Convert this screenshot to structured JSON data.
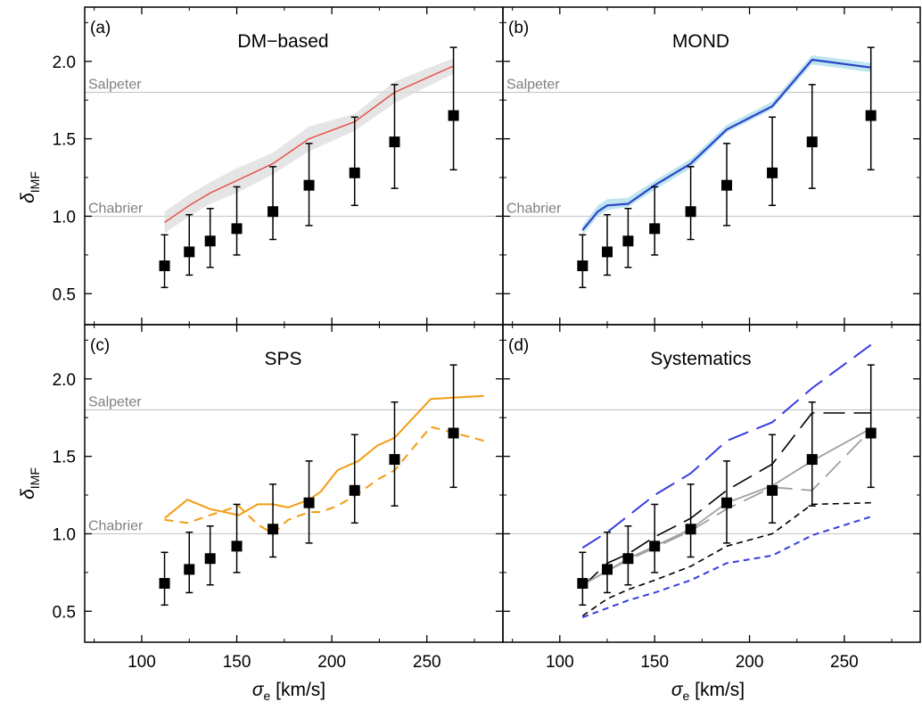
{
  "figure": {
    "xlabel_symbol": "σ",
    "xlabel_sub": "e",
    "xlabel_unit": " [km/s]",
    "ylabel_symbol": "δ",
    "ylabel_sub": "IMF"
  },
  "chart_data": [
    {
      "panel": "a",
      "panel_label": "(a)",
      "title": "DM−based",
      "type": "line",
      "xlim": [
        70,
        290
      ],
      "ylim": [
        0.3,
        2.35
      ],
      "xticks": [
        100,
        150,
        200,
        250
      ],
      "yticks": [
        0.5,
        1.0,
        1.5,
        2.0
      ],
      "reference_lines": [
        {
          "label": "Salpeter",
          "y": 1.8
        },
        {
          "label": "Chabrier",
          "y": 1.0
        }
      ],
      "data_points": {
        "x": [
          112,
          125,
          136,
          150,
          169,
          188,
          212,
          233,
          264
        ],
        "y": [
          0.68,
          0.77,
          0.84,
          0.92,
          1.03,
          1.2,
          1.28,
          1.48,
          1.65
        ],
        "err_low": [
          0.14,
          0.15,
          0.17,
          0.17,
          0.18,
          0.26,
          0.21,
          0.3,
          0.35
        ],
        "err_high": [
          0.2,
          0.24,
          0.21,
          0.27,
          0.29,
          0.27,
          0.36,
          0.37,
          0.44
        ]
      },
      "band": {
        "x": [
          112,
          125,
          136,
          150,
          169,
          188,
          212,
          233,
          264
        ],
        "lower": [
          0.89,
          1.0,
          1.08,
          1.15,
          1.27,
          1.42,
          1.55,
          1.73,
          1.92
        ],
        "upper": [
          1.03,
          1.14,
          1.22,
          1.31,
          1.41,
          1.58,
          1.66,
          1.87,
          2.02
        ],
        "color": "#dcdcdc"
      },
      "series": [
        {
          "x": [
            112,
            125,
            136,
            150,
            169,
            188,
            212,
            233,
            264
          ],
          "y": [
            0.96,
            1.07,
            1.15,
            1.23,
            1.34,
            1.5,
            1.61,
            1.8,
            1.97
          ],
          "color": "#e8483e",
          "style": "solid",
          "width": 1.4
        }
      ]
    },
    {
      "panel": "b",
      "panel_label": "(b)",
      "title": "MOND",
      "type": "line",
      "xlim": [
        70,
        290
      ],
      "ylim": [
        0.3,
        2.35
      ],
      "xticks": [
        100,
        150,
        200,
        250
      ],
      "yticks": [
        0.5,
        1.0,
        1.5,
        2.0
      ],
      "reference_lines": [
        {
          "label": "Salpeter",
          "y": 1.8
        },
        {
          "label": "Chabrier",
          "y": 1.0
        }
      ],
      "data_points": {
        "x": [
          112,
          125,
          136,
          150,
          169,
          188,
          212,
          233,
          264
        ],
        "y": [
          0.68,
          0.77,
          0.84,
          0.92,
          1.03,
          1.2,
          1.28,
          1.48,
          1.65
        ],
        "err_low": [
          0.14,
          0.15,
          0.17,
          0.17,
          0.18,
          0.26,
          0.21,
          0.3,
          0.35
        ],
        "err_high": [
          0.2,
          0.24,
          0.21,
          0.27,
          0.29,
          0.27,
          0.36,
          0.37,
          0.44
        ]
      },
      "band": {
        "x": [
          112,
          120,
          125,
          136,
          150,
          169,
          188,
          212,
          233,
          264
        ],
        "lower": [
          0.88,
          1.0,
          1.04,
          1.06,
          1.17,
          1.31,
          1.54,
          1.69,
          1.98,
          1.93
        ],
        "upper": [
          0.94,
          1.07,
          1.11,
          1.12,
          1.23,
          1.37,
          1.59,
          1.74,
          2.04,
          1.99
        ],
        "color": "#a9dcec"
      },
      "series": [
        {
          "x": [
            112,
            120,
            125,
            136,
            150,
            169,
            188,
            212,
            233,
            264
          ],
          "y": [
            0.91,
            1.03,
            1.07,
            1.08,
            1.2,
            1.34,
            1.56,
            1.71,
            2.01,
            1.96
          ],
          "color": "#2a44c8",
          "style": "solid",
          "width": 2.2
        }
      ]
    },
    {
      "panel": "c",
      "panel_label": "(c)",
      "title": "SPS",
      "type": "line",
      "xlim": [
        70,
        290
      ],
      "ylim": [
        0.3,
        2.35
      ],
      "xticks": [
        100,
        150,
        200,
        250
      ],
      "yticks": [
        0.5,
        1.0,
        1.5,
        2.0
      ],
      "reference_lines": [
        {
          "label": "Salpeter",
          "y": 1.8
        },
        {
          "label": "Chabrier",
          "y": 1.0
        }
      ],
      "data_points": {
        "x": [
          112,
          125,
          136,
          150,
          169,
          188,
          212,
          233,
          264
        ],
        "y": [
          0.68,
          0.77,
          0.84,
          0.92,
          1.03,
          1.2,
          1.28,
          1.48,
          1.65
        ],
        "err_low": [
          0.14,
          0.15,
          0.17,
          0.17,
          0.18,
          0.26,
          0.21,
          0.3,
          0.35
        ],
        "err_high": [
          0.2,
          0.24,
          0.21,
          0.27,
          0.29,
          0.27,
          0.36,
          0.37,
          0.44
        ]
      },
      "band": null,
      "series": [
        {
          "x": [
            112,
            124,
            136,
            151,
            161,
            169,
            177,
            188,
            194,
            203,
            214,
            224,
            233,
            252,
            265,
            280
          ],
          "y": [
            1.1,
            1.22,
            1.16,
            1.12,
            1.19,
            1.19,
            1.17,
            1.22,
            1.27,
            1.41,
            1.47,
            1.57,
            1.62,
            1.87,
            1.88,
            1.89
          ],
          "color": "#f39c12",
          "style": "solid",
          "width": 2.0
        },
        {
          "x": [
            112,
            124,
            136,
            151,
            161,
            169,
            177,
            188,
            194,
            203,
            214,
            224,
            233,
            252,
            265,
            280
          ],
          "y": [
            1.09,
            1.07,
            1.12,
            1.18,
            1.06,
            1.0,
            1.09,
            1.14,
            1.14,
            1.18,
            1.26,
            1.35,
            1.41,
            1.69,
            1.65,
            1.6
          ],
          "color": "#f39c12",
          "style": "dashed",
          "width": 2.0
        }
      ]
    },
    {
      "panel": "d",
      "panel_label": "(d)",
      "title": "Systematics",
      "type": "line",
      "xlim": [
        70,
        290
      ],
      "ylim": [
        0.3,
        2.35
      ],
      "xticks": [
        100,
        150,
        200,
        250
      ],
      "yticks": [
        0.5,
        1.0,
        1.5,
        2.0
      ],
      "reference_lines": [
        {
          "label": "",
          "y": 1.8
        },
        {
          "label": "",
          "y": 1.0
        }
      ],
      "data_points": {
        "x": [
          112,
          125,
          136,
          150,
          169,
          188,
          212,
          233,
          264
        ],
        "y": [
          0.68,
          0.77,
          0.84,
          0.92,
          1.03,
          1.2,
          1.28,
          1.48,
          1.65
        ],
        "err_low": [
          0.14,
          0.15,
          0.17,
          0.17,
          0.18,
          0.26,
          0.21,
          0.3,
          0.35
        ],
        "err_high": [
          0.2,
          0.24,
          0.21,
          0.27,
          0.29,
          0.27,
          0.36,
          0.37,
          0.44
        ]
      },
      "band": null,
      "series": [
        {
          "x": [
            112,
            125,
            150,
            169,
            188,
            212,
            233,
            264
          ],
          "y": [
            0.91,
            1.01,
            1.25,
            1.39,
            1.6,
            1.72,
            1.94,
            2.22
          ],
          "color": "#3a3ee0",
          "style": "longdash",
          "width": 2.0
        },
        {
          "x": [
            112,
            125,
            136,
            150,
            169,
            188,
            212,
            233,
            264
          ],
          "y": [
            0.66,
            0.81,
            0.87,
            0.98,
            1.1,
            1.28,
            1.45,
            1.78,
            1.78
          ],
          "color": "#000000",
          "style": "longdash",
          "width": 1.6
        },
        {
          "x": [
            112,
            125,
            136,
            150,
            169,
            188,
            212,
            233,
            264
          ],
          "y": [
            0.67,
            0.76,
            0.84,
            0.92,
            1.03,
            1.2,
            1.31,
            1.47,
            1.68
          ],
          "color": "#a0a0a0",
          "style": "solid",
          "width": 1.8
        },
        {
          "x": [
            112,
            125,
            136,
            150,
            169,
            188,
            212,
            233,
            264
          ],
          "y": [
            0.67,
            0.76,
            0.83,
            0.91,
            1.02,
            1.16,
            1.3,
            1.28,
            1.67
          ],
          "color": "#a0a0a0",
          "style": "longdash",
          "width": 1.8
        },
        {
          "x": [
            112,
            125,
            136,
            150,
            169,
            188,
            212,
            233,
            264
          ],
          "y": [
            0.47,
            0.58,
            0.64,
            0.7,
            0.79,
            0.92,
            1.0,
            1.19,
            1.2
          ],
          "color": "#000000",
          "style": "shortdash",
          "width": 1.6
        },
        {
          "x": [
            112,
            125,
            136,
            150,
            169,
            188,
            212,
            233,
            264
          ],
          "y": [
            0.46,
            0.52,
            0.57,
            0.62,
            0.7,
            0.81,
            0.86,
            0.99,
            1.11
          ],
          "color": "#3a3ee0",
          "style": "shortdash",
          "width": 2.0
        }
      ]
    }
  ]
}
